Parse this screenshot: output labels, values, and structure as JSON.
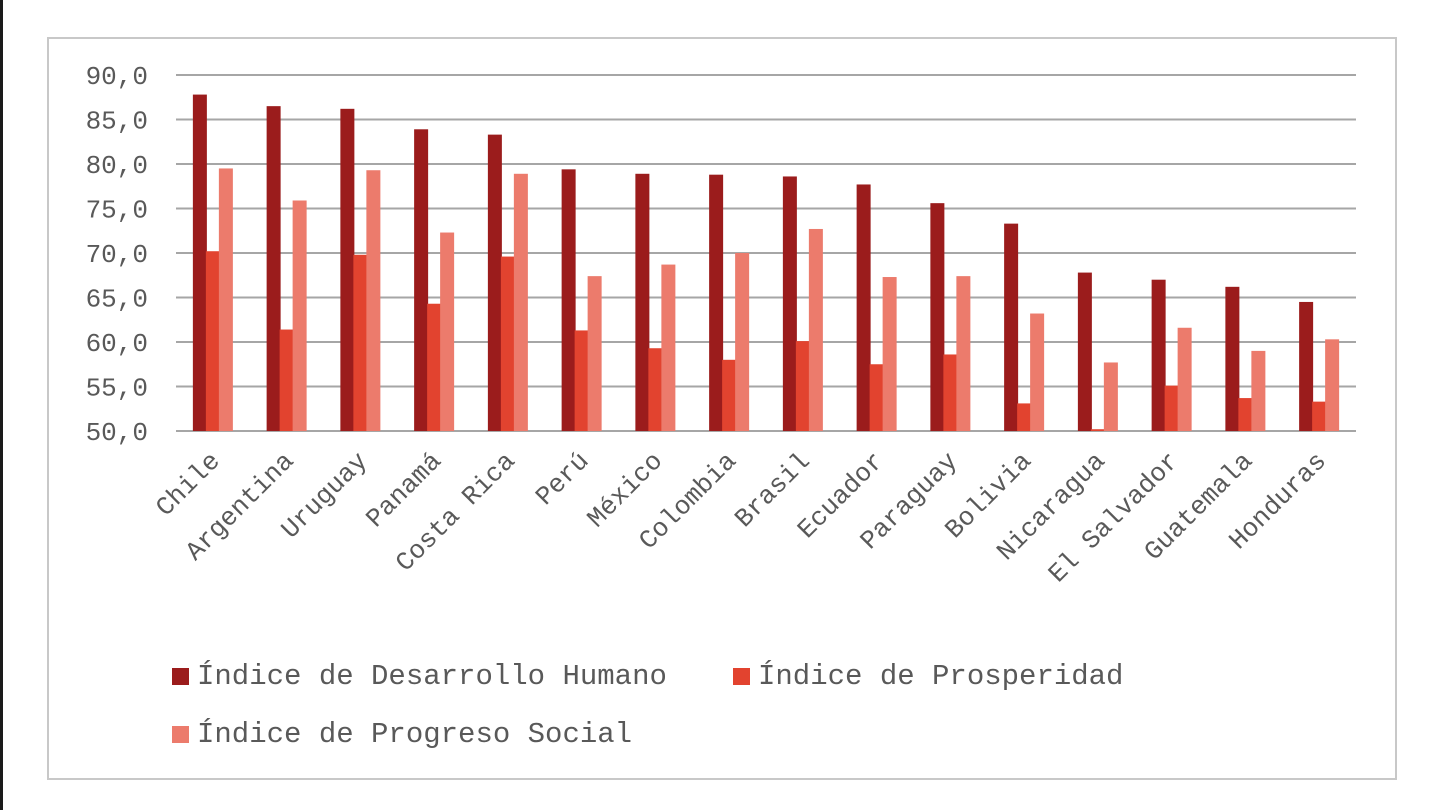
{
  "chart_data": {
    "type": "bar",
    "categories": [
      "Chile",
      "Argentina",
      "Uruguay",
      "Panamá",
      "Costa Rica",
      "Perú",
      "México",
      "Colombia",
      "Brasil",
      "Ecuador",
      "Paraguay",
      "Bolivia",
      "Nicaragua",
      "El Salvador",
      "Guatemala",
      "Honduras"
    ],
    "series": [
      {
        "name": "Índice de Desarrollo Humano",
        "color": "#9b1c1c",
        "values": [
          87.8,
          86.5,
          86.2,
          83.9,
          83.3,
          79.4,
          78.9,
          78.8,
          78.6,
          77.7,
          75.6,
          73.3,
          67.8,
          67.0,
          66.2,
          64.5
        ]
      },
      {
        "name": "Índice de Prosperidad",
        "color": "#e2432f",
        "values": [
          70.2,
          61.4,
          69.8,
          64.3,
          69.6,
          61.3,
          59.3,
          58.0,
          60.1,
          57.5,
          58.6,
          53.1,
          50.2,
          55.1,
          53.7,
          53.3
        ]
      },
      {
        "name": "Índice de Progreso Social",
        "color": "#ec7b6c",
        "values": [
          79.5,
          75.9,
          79.3,
          72.3,
          78.9,
          67.4,
          68.7,
          70.0,
          72.7,
          67.3,
          67.4,
          63.2,
          57.7,
          61.6,
          59.0,
          60.3
        ]
      }
    ],
    "yticks": [
      "90,0",
      "85,0",
      "80,0",
      "75,0",
      "70,0",
      "65,0",
      "60,0",
      "55,0",
      "50,0"
    ],
    "ylim": [
      50,
      90
    ],
    "grid": true,
    "legend": "bottom"
  }
}
